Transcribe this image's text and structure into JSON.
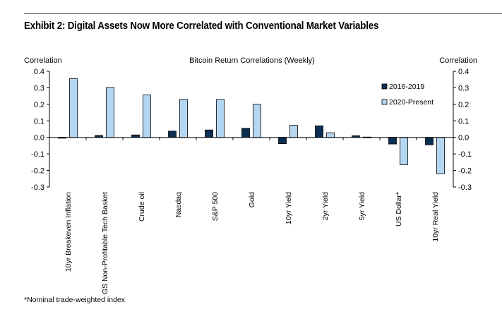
{
  "exhibit": {
    "title": "Exhibit 2: Digital Assets Now More Correlated with Conventional Market Variables",
    "footnote": "*Nominal trade-weighted index"
  },
  "chart_data": {
    "type": "bar",
    "title": "Bitcoin Return Correlations (Weekly)",
    "ylabel": "Correlation",
    "ylabel_right": "Correlation",
    "ylim": [
      -0.3,
      0.4
    ],
    "yticks": [
      0.4,
      0.3,
      0.2,
      0.1,
      0.0,
      -0.1,
      -0.2,
      -0.3
    ],
    "ytick_labels": [
      "0.4",
      "0.3",
      "0.2",
      "0.1",
      "0.0",
      "-0.1",
      "-0.2",
      "-0.3"
    ],
    "categories": [
      "10yr Breakeven Inflation",
      "GS Non-Profitable Tech Basket",
      "Crude oil",
      "Nasdaq",
      "S&P 500",
      "Gold",
      "10yr Yield",
      "2yr Yield",
      "5yr Yield",
      "US Dollar*",
      "10yr Real Yield"
    ],
    "series": [
      {
        "name": "2016-2019",
        "color": "#0b2f52",
        "values": [
          -0.005,
          0.012,
          0.015,
          0.038,
          0.045,
          0.055,
          -0.038,
          0.07,
          0.01,
          -0.04,
          -0.045
        ]
      },
      {
        "name": "2020-Present",
        "color": "#b4d6f0",
        "values": [
          0.355,
          0.302,
          0.257,
          0.23,
          0.23,
          0.2,
          0.073,
          0.028,
          -0.003,
          -0.165,
          -0.22
        ]
      }
    ],
    "legend_position": "right",
    "grid": false
  }
}
